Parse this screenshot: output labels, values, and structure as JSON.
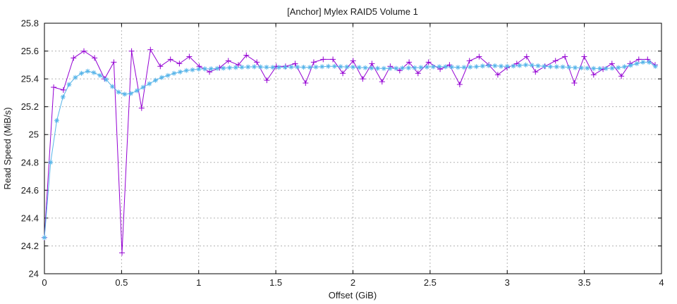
{
  "chart_data": {
    "type": "line",
    "title": "[Anchor] Mylex RAID5 Volume 1",
    "xlabel": "Offset (GiB)",
    "ylabel": "Read Speed (MiB/s)",
    "xlim": [
      0,
      4
    ],
    "ylim": [
      24,
      25.8
    ],
    "grid": true,
    "legend_position": "none",
    "xticks": {
      "values": [
        0,
        0.5,
        1,
        1.5,
        2,
        2.5,
        3,
        3.5,
        4
      ],
      "labels": [
        "0",
        "0.5",
        "1",
        "1.5",
        "2",
        "2.5",
        "3",
        "3.5",
        "4"
      ]
    },
    "yticks": {
      "values": [
        24,
        24.2,
        24.4,
        24.6,
        24.8,
        25,
        25.2,
        25.4,
        25.6,
        25.8
      ],
      "labels": [
        "24",
        "24.2",
        "24.4",
        "24.6",
        "24.8",
        "25",
        "25.2",
        "25.4",
        "25.6",
        "25.8"
      ]
    },
    "colors": {
      "axis": "#000000",
      "grid": "#b3b3b3",
      "text": "#1c1c1c",
      "series1": "#9400d3",
      "series2": "#56b4e9"
    },
    "series": [
      {
        "id": "series-1",
        "marker": "plus",
        "color": "#9400d3",
        "points": [
          [
            0.0,
            24.26
          ],
          [
            0.06,
            25.34
          ],
          [
            0.123,
            25.32
          ],
          [
            0.189,
            25.55
          ],
          [
            0.256,
            25.6
          ],
          [
            0.325,
            25.55
          ],
          [
            0.39,
            25.4
          ],
          [
            0.45,
            25.52
          ],
          [
            0.503,
            24.15
          ],
          [
            0.565,
            25.6
          ],
          [
            0.63,
            25.19
          ],
          [
            0.687,
            25.61
          ],
          [
            0.751,
            25.49
          ],
          [
            0.817,
            25.54
          ],
          [
            0.875,
            25.51
          ],
          [
            0.939,
            25.56
          ],
          [
            1.004,
            25.49
          ],
          [
            1.07,
            25.45
          ],
          [
            1.135,
            25.48
          ],
          [
            1.192,
            25.53
          ],
          [
            1.257,
            25.5
          ],
          [
            1.309,
            25.57
          ],
          [
            1.377,
            25.52
          ],
          [
            1.442,
            25.39
          ],
          [
            1.503,
            25.49
          ],
          [
            1.563,
            25.49
          ],
          [
            1.625,
            25.51
          ],
          [
            1.693,
            25.37
          ],
          [
            1.746,
            25.52
          ],
          [
            1.807,
            25.54
          ],
          [
            1.87,
            25.54
          ],
          [
            1.934,
            25.44
          ],
          [
            2.001,
            25.53
          ],
          [
            2.063,
            25.4
          ],
          [
            2.123,
            25.51
          ],
          [
            2.189,
            25.38
          ],
          [
            2.242,
            25.49
          ],
          [
            2.303,
            25.46
          ],
          [
            2.364,
            25.52
          ],
          [
            2.422,
            25.44
          ],
          [
            2.49,
            25.52
          ],
          [
            2.565,
            25.47
          ],
          [
            2.626,
            25.5
          ],
          [
            2.692,
            25.36
          ],
          [
            2.755,
            25.53
          ],
          [
            2.818,
            25.56
          ],
          [
            2.881,
            25.5
          ],
          [
            2.939,
            25.43
          ],
          [
            2.999,
            25.48
          ],
          [
            3.062,
            25.51
          ],
          [
            3.126,
            25.56
          ],
          [
            3.183,
            25.45
          ],
          [
            3.245,
            25.49
          ],
          [
            3.313,
            25.53
          ],
          [
            3.374,
            25.56
          ],
          [
            3.435,
            25.37
          ],
          [
            3.499,
            25.56
          ],
          [
            3.56,
            25.43
          ],
          [
            3.621,
            25.47
          ],
          [
            3.679,
            25.51
          ],
          [
            3.74,
            25.42
          ],
          [
            3.796,
            25.51
          ],
          [
            3.853,
            25.54
          ],
          [
            3.91,
            25.54
          ],
          [
            3.959,
            25.5
          ]
        ]
      },
      {
        "id": "series-2",
        "marker": "asterisk",
        "color": "#56b4e9",
        "points": [
          [
            0.0,
            24.26
          ],
          [
            0.04,
            24.8
          ],
          [
            0.08,
            25.1
          ],
          [
            0.12,
            25.27
          ],
          [
            0.16,
            25.36
          ],
          [
            0.2,
            25.41
          ],
          [
            0.24,
            25.44
          ],
          [
            0.28,
            25.455
          ],
          [
            0.32,
            25.445
          ],
          [
            0.36,
            25.425
          ],
          [
            0.4,
            25.395
          ],
          [
            0.44,
            25.345
          ],
          [
            0.48,
            25.305
          ],
          [
            0.52,
            25.29
          ],
          [
            0.56,
            25.295
          ],
          [
            0.6,
            25.315
          ],
          [
            0.64,
            25.34
          ],
          [
            0.68,
            25.365
          ],
          [
            0.72,
            25.39
          ],
          [
            0.76,
            25.41
          ],
          [
            0.8,
            25.425
          ],
          [
            0.84,
            25.44
          ],
          [
            0.88,
            25.45
          ],
          [
            0.92,
            25.46
          ],
          [
            0.96,
            25.465
          ],
          [
            1.0,
            25.47
          ],
          [
            1.04,
            25.472
          ],
          [
            1.08,
            25.473
          ],
          [
            1.12,
            25.475
          ],
          [
            1.16,
            25.477
          ],
          [
            1.2,
            25.48
          ],
          [
            1.24,
            25.482
          ],
          [
            1.28,
            25.484
          ],
          [
            1.32,
            25.486
          ],
          [
            1.36,
            25.487
          ],
          [
            1.4,
            25.486
          ],
          [
            1.44,
            25.484
          ],
          [
            1.48,
            25.483
          ],
          [
            1.52,
            25.483
          ],
          [
            1.56,
            25.484
          ],
          [
            1.6,
            25.485
          ],
          [
            1.64,
            25.485
          ],
          [
            1.68,
            25.484
          ],
          [
            1.72,
            25.483
          ],
          [
            1.76,
            25.485
          ],
          [
            1.8,
            25.488
          ],
          [
            1.84,
            25.49
          ],
          [
            1.88,
            25.49
          ],
          [
            1.92,
            25.488
          ],
          [
            1.96,
            25.486
          ],
          [
            2.0,
            25.485
          ],
          [
            2.04,
            25.482
          ],
          [
            2.08,
            25.48
          ],
          [
            2.12,
            25.478
          ],
          [
            2.16,
            25.476
          ],
          [
            2.2,
            25.475
          ],
          [
            2.24,
            25.475
          ],
          [
            2.28,
            25.476
          ],
          [
            2.32,
            25.478
          ],
          [
            2.36,
            25.479
          ],
          [
            2.4,
            25.48
          ],
          [
            2.44,
            25.482
          ],
          [
            2.48,
            25.485
          ],
          [
            2.52,
            25.487
          ],
          [
            2.56,
            25.488
          ],
          [
            2.6,
            25.487
          ],
          [
            2.64,
            25.485
          ],
          [
            2.68,
            25.483
          ],
          [
            2.72,
            25.483
          ],
          [
            2.76,
            25.485
          ],
          [
            2.8,
            25.488
          ],
          [
            2.84,
            25.492
          ],
          [
            2.88,
            25.495
          ],
          [
            2.92,
            25.494
          ],
          [
            2.96,
            25.491
          ],
          [
            3.0,
            25.49
          ],
          [
            3.04,
            25.492
          ],
          [
            3.08,
            25.496
          ],
          [
            3.12,
            25.5
          ],
          [
            3.16,
            25.498
          ],
          [
            3.2,
            25.494
          ],
          [
            3.24,
            25.49
          ],
          [
            3.28,
            25.488
          ],
          [
            3.32,
            25.487
          ],
          [
            3.36,
            25.486
          ],
          [
            3.4,
            25.484
          ],
          [
            3.44,
            25.481
          ],
          [
            3.48,
            25.479
          ],
          [
            3.52,
            25.477
          ],
          [
            3.56,
            25.475
          ],
          [
            3.6,
            25.474
          ],
          [
            3.64,
            25.475
          ],
          [
            3.68,
            25.477
          ],
          [
            3.72,
            25.481
          ],
          [
            3.76,
            25.487
          ],
          [
            3.8,
            25.497
          ],
          [
            3.84,
            25.51
          ],
          [
            3.88,
            25.52
          ],
          [
            3.92,
            25.52
          ],
          [
            3.96,
            25.49
          ]
        ]
      }
    ]
  }
}
